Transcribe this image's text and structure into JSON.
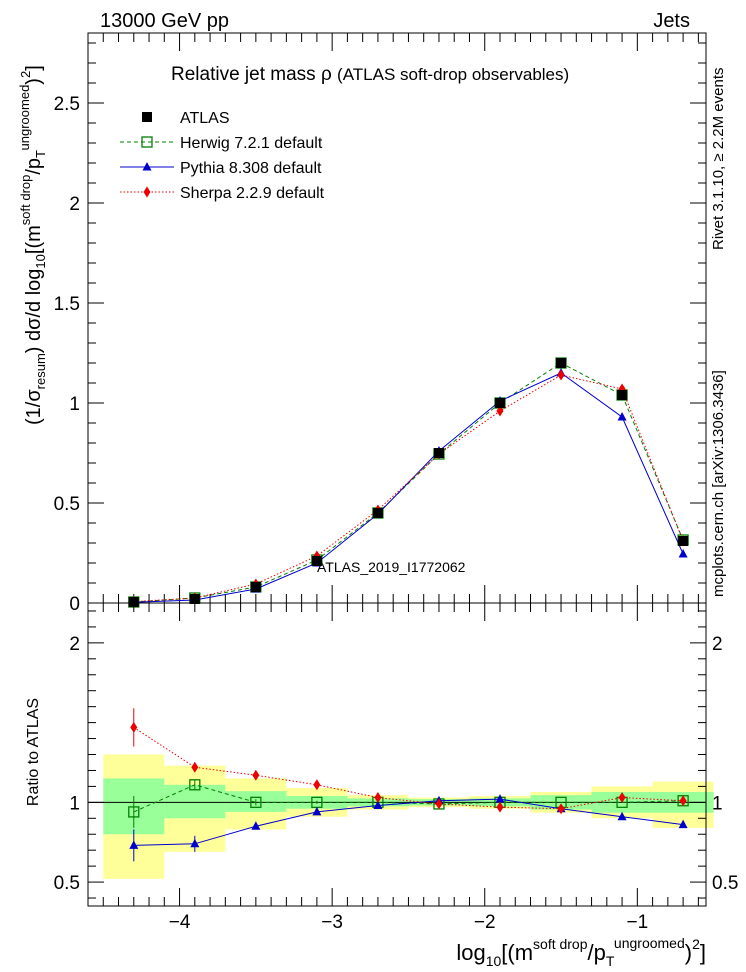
{
  "header": {
    "left": "13000 GeV pp",
    "right": "Jets"
  },
  "side_labels": {
    "rivet": "Rivet 3.1.10, ≥ 2.2M events",
    "mcplots": "mcplots.cern.ch [arXiv:1306.3436]"
  },
  "chart_data": [
    {
      "type": "line",
      "title_main": "Relative jet mass",
      "title_symbol": "ρ",
      "title_sub": "(ATLAS soft-drop observables)",
      "watermark": "ATLAS_2019_I1772062",
      "ylabel": "(1/σresum) dσ/d log10[(m soft drop/pT ungroomed)2]",
      "ylabel_parts": {
        "a": "(1/σ",
        "b": "resum",
        "c": ") dσ/d log",
        "d": "10",
        "e": "[(m",
        "f": "soft drop",
        "g": "/p",
        "h": "T",
        "i": "ungroomed",
        "j": ")",
        "k": "2",
        "l": "]"
      },
      "xlim": [
        -4.6,
        -0.55
      ],
      "ylim": [
        0,
        2.85
      ],
      "yticks": [
        0,
        0.5,
        1,
        1.5,
        2,
        2.5
      ],
      "ytick_labels": [
        "0",
        "0.5",
        "1",
        "1.5",
        "2",
        "2.5"
      ],
      "x": [
        -4.3,
        -3.9,
        -3.5,
        -3.1,
        -2.7,
        -2.3,
        -1.9,
        -1.5,
        -1.1,
        -0.7
      ],
      "series": [
        {
          "name": "ATLAS",
          "color": "#000000",
          "marker": "square-filled",
          "line": "none",
          "values": [
            0.005,
            0.02,
            0.08,
            0.21,
            0.45,
            0.75,
            1.0,
            1.2,
            1.04,
            0.31
          ]
        },
        {
          "name": "Herwig 7.2.1 default",
          "color": "#008000",
          "marker": "square-open",
          "line": "dashed",
          "values": [
            0.005,
            0.025,
            0.08,
            0.215,
            0.45,
            0.745,
            1.0,
            1.2,
            1.04,
            0.315
          ]
        },
        {
          "name": "Pythia 8.308 default",
          "color": "#0000cc",
          "marker": "triangle",
          "line": "solid",
          "values": [
            0.004,
            0.015,
            0.07,
            0.2,
            0.445,
            0.76,
            1.01,
            1.15,
            0.93,
            0.245
          ]
        },
        {
          "name": "Sherpa 2.2.9 default",
          "color": "#ee0000",
          "marker": "diamond",
          "line": "dotted",
          "values": [
            0.007,
            0.025,
            0.095,
            0.235,
            0.465,
            0.745,
            0.96,
            1.14,
            1.07,
            0.31
          ]
        }
      ]
    },
    {
      "type": "line",
      "ylabel": "Ratio to ATLAS",
      "xlabel": "log10[(m soft drop/pT ungroomed)2]",
      "xlabel_parts": {
        "a": "log",
        "b": "10",
        "c": "[(m",
        "d": "soft drop",
        "e": "/p",
        "f": "T",
        "g": "ungroomed",
        "h": ")",
        "i": "2",
        "j": "]"
      },
      "xlim": [
        -4.6,
        -0.55
      ],
      "ylim": [
        0.35,
        2.25
      ],
      "yticks": [
        0.5,
        1,
        2
      ],
      "ytick_labels": [
        "0.5",
        "1",
        "2"
      ],
      "xticks": [
        -4,
        -3,
        -2,
        -1
      ],
      "xtick_labels": [
        "−4",
        "−3",
        "−2",
        "−1"
      ],
      "bins": [
        [
          -4.5,
          -4.1
        ],
        [
          -4.1,
          -3.7
        ],
        [
          -3.7,
          -3.3
        ],
        [
          -3.3,
          -2.9
        ],
        [
          -2.9,
          -2.5
        ],
        [
          -2.5,
          -2.1
        ],
        [
          -2.1,
          -1.7
        ],
        [
          -1.7,
          -1.3
        ],
        [
          -1.3,
          -0.9
        ],
        [
          -0.9,
          -0.5
        ]
      ],
      "band_stat": [
        [
          0.8,
          1.15
        ],
        [
          0.9,
          1.11
        ],
        [
          0.94,
          1.07
        ],
        [
          0.96,
          1.04
        ],
        [
          0.975,
          1.025
        ],
        [
          0.98,
          1.02
        ],
        [
          0.975,
          1.025
        ],
        [
          0.955,
          1.045
        ],
        [
          0.935,
          1.065
        ],
        [
          0.935,
          1.065
        ]
      ],
      "band_total": [
        [
          0.52,
          1.3
        ],
        [
          0.69,
          1.23
        ],
        [
          0.83,
          1.15
        ],
        [
          0.91,
          1.09
        ],
        [
          0.955,
          1.045
        ],
        [
          0.97,
          1.03
        ],
        [
          0.96,
          1.04
        ],
        [
          0.935,
          1.065
        ],
        [
          0.9,
          1.1
        ],
        [
          0.84,
          1.13
        ]
      ],
      "x": [
        -4.3,
        -3.9,
        -3.5,
        -3.1,
        -2.7,
        -2.3,
        -1.9,
        -1.5,
        -1.1,
        -0.7
      ],
      "series": [
        {
          "name": "Herwig 7.2.1 default",
          "color": "#008000",
          "marker": "square-open",
          "line": "dashed",
          "values": [
            0.94,
            1.11,
            1.0,
            1.0,
            1.0,
            0.99,
            1.0,
            1.0,
            1.0,
            1.01
          ],
          "err": [
            0.1,
            0.03,
            0.02,
            0.01,
            0.01,
            0.005,
            0.005,
            0.005,
            0.005,
            0.01
          ]
        },
        {
          "name": "Pythia 8.308 default",
          "color": "#0000cc",
          "marker": "triangle",
          "line": "solid",
          "values": [
            0.73,
            0.74,
            0.85,
            0.94,
            0.98,
            1.01,
            1.02,
            0.96,
            0.91,
            0.86
          ],
          "err": [
            0.1,
            0.05,
            0.02,
            0.01,
            0.01,
            0.005,
            0.005,
            0.005,
            0.005,
            0.01
          ]
        },
        {
          "name": "Sherpa 2.2.9 default",
          "color": "#ee0000",
          "marker": "diamond",
          "line": "dotted",
          "values": [
            1.47,
            1.22,
            1.17,
            1.11,
            1.03,
            0.99,
            0.97,
            0.96,
            1.03,
            1.01
          ],
          "err": [
            0.12,
            0.03,
            0.02,
            0.01,
            0.01,
            0.005,
            0.005,
            0.005,
            0.005,
            0.01
          ]
        }
      ]
    }
  ]
}
